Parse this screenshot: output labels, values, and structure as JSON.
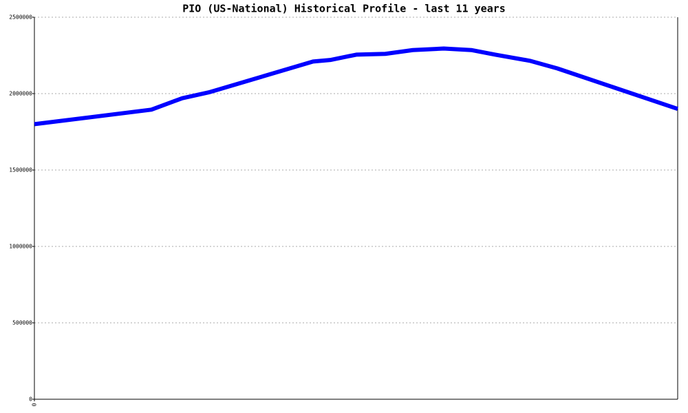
{
  "chart_data": {
    "type": "line",
    "title": "PIO (US-National) Historical Profile - last 11 years",
    "x": [
      0,
      170,
      215,
      255,
      405,
      430,
      468,
      510,
      550,
      595,
      635,
      670,
      720,
      760,
      935
    ],
    "values": [
      1800000,
      1895000,
      1970000,
      2010000,
      2210000,
      2220000,
      2255000,
      2260000,
      2285000,
      2295000,
      2285000,
      2255000,
      2215000,
      2165000,
      1900000
    ],
    "color": "#0000ff",
    "xlim": [
      0,
      935
    ],
    "xticks": [
      0
    ],
    "ylim": [
      0,
      2500000
    ],
    "yticks": [
      0,
      500000,
      1000000,
      1500000,
      2000000,
      2500000
    ],
    "grid": true
  }
}
